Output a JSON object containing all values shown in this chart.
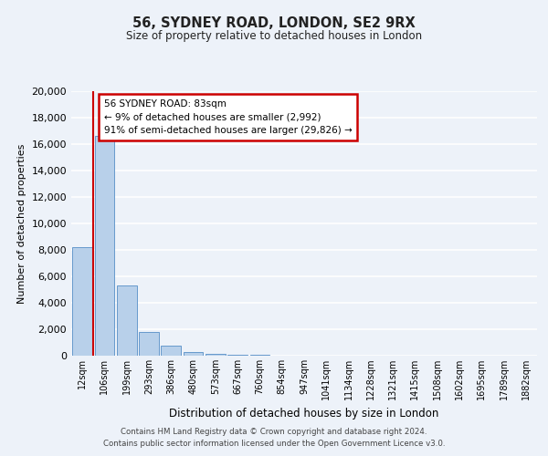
{
  "title": "56, SYDNEY ROAD, LONDON, SE2 9RX",
  "subtitle": "Size of property relative to detached houses in London",
  "xlabel": "Distribution of detached houses by size in London",
  "ylabel": "Number of detached properties",
  "categories": [
    "12sqm",
    "106sqm",
    "199sqm",
    "293sqm",
    "386sqm",
    "480sqm",
    "573sqm",
    "667sqm",
    "760sqm",
    "854sqm",
    "947sqm",
    "1041sqm",
    "1134sqm",
    "1228sqm",
    "1321sqm",
    "1415sqm",
    "1508sqm",
    "1602sqm",
    "1695sqm",
    "1789sqm",
    "1882sqm"
  ],
  "values": [
    8200,
    16600,
    5300,
    1800,
    750,
    280,
    160,
    80,
    40,
    0,
    0,
    0,
    0,
    0,
    0,
    0,
    0,
    0,
    0,
    0,
    0
  ],
  "bar_color": "#b8d0ea",
  "bar_edge_color": "#6699cc",
  "background_color": "#edf2f9",
  "grid_color": "#ffffff",
  "annotation_box_text": "56 SYDNEY ROAD: 83sqm\n← 9% of detached houses are smaller (2,992)\n91% of semi-detached houses are larger (29,826) →",
  "annotation_box_color": "#ffffff",
  "annotation_box_edge_color": "#cc0000",
  "vline_color": "#cc0000",
  "ylim": [
    0,
    20000
  ],
  "yticks": [
    0,
    2000,
    4000,
    6000,
    8000,
    10000,
    12000,
    14000,
    16000,
    18000,
    20000
  ],
  "footnote1": "Contains HM Land Registry data © Crown copyright and database right 2024.",
  "footnote2": "Contains public sector information licensed under the Open Government Licence v3.0."
}
